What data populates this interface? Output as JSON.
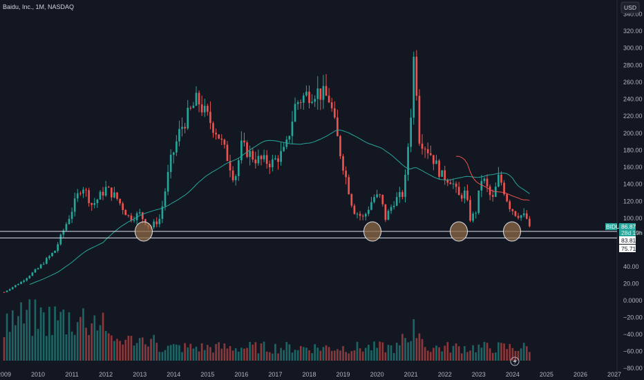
{
  "header": {
    "symbol_title": "Baidu, Inc., 1M, NASDAQ",
    "currency_button": "USD"
  },
  "price_tags": {
    "ticker": "BIDU",
    "last_price": "86.87",
    "countdown": "28d 19h",
    "level_upper": "83.81",
    "level_lower": "75.71"
  },
  "colors": {
    "background": "#131722",
    "grid": "#1e222d",
    "up": "#26a69a",
    "down": "#ef5350",
    "ma_long": "#26a69a",
    "ma_short": "#ef5350",
    "level_line": "#e0e3eb",
    "circle_fill": "#8d6a45"
  },
  "chart_data": {
    "type": "candlestick",
    "title": "Baidu, Inc., 1M, NASDAQ",
    "x_ticks": [
      "2009",
      "2010",
      "2011",
      "2012",
      "2013",
      "2014",
      "2015",
      "2016",
      "2017",
      "2018",
      "2019",
      "2020",
      "2021",
      "2022",
      "2023",
      "2024",
      "2025",
      "2026",
      "2027"
    ],
    "y_ticks": [
      340,
      320,
      300,
      280,
      260,
      240,
      220,
      200,
      180,
      160,
      140,
      120,
      100,
      40,
      20,
      0,
      -20,
      -40,
      -60,
      -80
    ],
    "y_tick_labels": [
      "340.00",
      "320.00",
      "300.00",
      "280.00",
      "260.00",
      "240.00",
      "220.00",
      "200.00",
      "180.00",
      "160.00",
      "140.00",
      "120.00",
      "100.00",
      "40.00",
      "20.00",
      "0.0000",
      "−20.00",
      "−40.00",
      "−60.00",
      "−80.00"
    ],
    "ylim": [
      -80,
      345
    ],
    "price_close_approx": {
      "2009": 12,
      "2010": 40,
      "2011": 135,
      "2012": 105,
      "2013": 95,
      "2014": 215,
      "2015": 190,
      "2016": 170,
      "2017": 175,
      "2018": 235,
      "2019": 105,
      "2020": 110,
      "2021": 230,
      "2022": 150,
      "2023": 115,
      "2024": 100,
      "2024-06": 86.87
    },
    "horizontal_levels": [
      83.81,
      75.71
    ],
    "last_price": 86.87,
    "moving_average": true,
    "support_touches": [
      "2013",
      "2020",
      "2022",
      "2024"
    ],
    "volume_panel": true,
    "grid": false
  }
}
